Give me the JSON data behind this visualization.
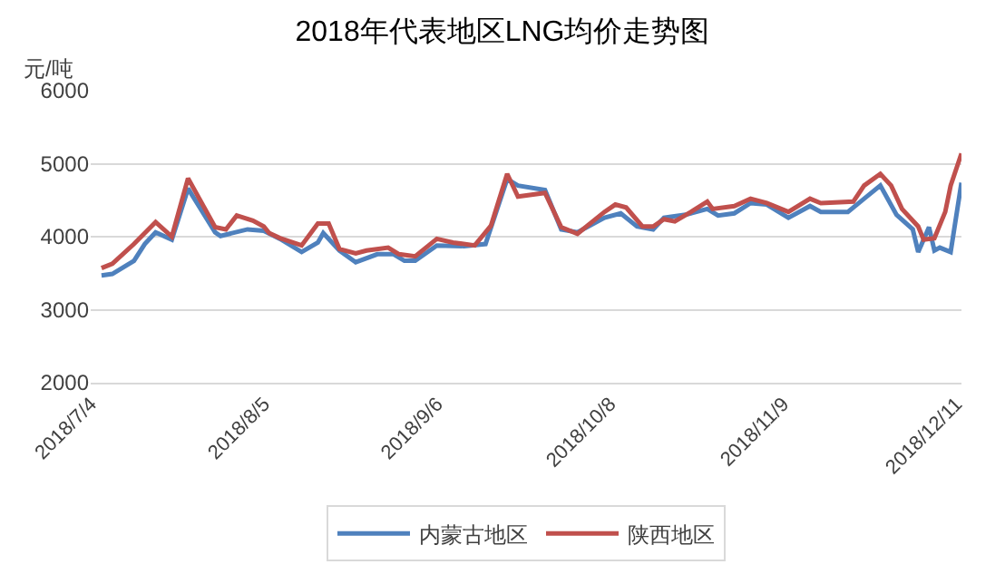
{
  "chart_data": {
    "type": "line",
    "title": "2018年代表地区LNG均价走势图",
    "ylabel": "元/吨",
    "xlim": [
      "2018-07-04",
      "2018-12-12"
    ],
    "xticks": [
      {
        "value": "2018-07-04",
        "label": "2018/7/4"
      },
      {
        "value": "2018-08-05",
        "label": "2018/8/5"
      },
      {
        "value": "2018-09-06",
        "label": "2018/9/6"
      },
      {
        "value": "2018-10-08",
        "label": "2018/10/8"
      },
      {
        "value": "2018-11-09",
        "label": "2018/11/9"
      },
      {
        "value": "2018-12-11",
        "label": "2018/12/11"
      }
    ],
    "ylim": [
      2000,
      6000
    ],
    "yticks": [
      2000,
      3000,
      4000,
      5000,
      6000
    ],
    "grid": "y",
    "legend": "bottom",
    "marker": "none",
    "line_style": "solid",
    "series": [
      {
        "name": "内蒙古地区",
        "color": "#4f81bd",
        "x": [
          "2018-07-06",
          "2018-07-08",
          "2018-07-12",
          "2018-07-14",
          "2018-07-16",
          "2018-07-19",
          "2018-07-22",
          "2018-07-27",
          "2018-07-28",
          "2018-08-02",
          "2018-08-05",
          "2018-08-08",
          "2018-08-12",
          "2018-08-15",
          "2018-08-16",
          "2018-08-19",
          "2018-08-22",
          "2018-08-26",
          "2018-08-29",
          "2018-08-31",
          "2018-09-02",
          "2018-09-06",
          "2018-09-11",
          "2018-09-15",
          "2018-09-19",
          "2018-09-21",
          "2018-09-26",
          "2018-09-29",
          "2018-10-02",
          "2018-10-07",
          "2018-10-10",
          "2018-10-13",
          "2018-10-16",
          "2018-10-18",
          "2018-10-22",
          "2018-10-26",
          "2018-10-28",
          "2018-10-31",
          "2018-11-03",
          "2018-11-06",
          "2018-11-10",
          "2018-11-14",
          "2018-11-16",
          "2018-11-21",
          "2018-11-24",
          "2018-11-27",
          "2018-11-30",
          "2018-12-03",
          "2018-12-04",
          "2018-12-06",
          "2018-12-07",
          "2018-12-08",
          "2018-12-10",
          "2018-12-12"
        ],
        "values": [
          3470,
          3490,
          3670,
          3900,
          4060,
          3960,
          4660,
          4060,
          4010,
          4100,
          4080,
          3970,
          3790,
          3920,
          4050,
          3810,
          3650,
          3760,
          3760,
          3670,
          3670,
          3880,
          3870,
          3900,
          4790,
          4700,
          4640,
          4100,
          4060,
          4260,
          4320,
          4140,
          4100,
          4260,
          4300,
          4380,
          4290,
          4320,
          4460,
          4440,
          4260,
          4420,
          4340,
          4340,
          4520,
          4700,
          4300,
          4100,
          3790,
          4130,
          3810,
          3850,
          3790,
          4740
        ]
      },
      {
        "name": "陕西地区",
        "color": "#c0504d",
        "x": [
          "2018-07-06",
          "2018-07-08",
          "2018-07-12",
          "2018-07-16",
          "2018-07-19",
          "2018-07-22",
          "2018-07-27",
          "2018-07-29",
          "2018-07-31",
          "2018-08-03",
          "2018-08-05",
          "2018-08-06",
          "2018-08-08",
          "2018-08-12",
          "2018-08-15",
          "2018-08-17",
          "2018-08-19",
          "2018-08-22",
          "2018-08-24",
          "2018-08-28",
          "2018-08-30",
          "2018-09-02",
          "2018-09-06",
          "2018-09-09",
          "2018-09-13",
          "2018-09-16",
          "2018-09-19",
          "2018-09-21",
          "2018-09-26",
          "2018-09-29",
          "2018-10-02",
          "2018-10-07",
          "2018-10-09",
          "2018-10-11",
          "2018-10-14",
          "2018-10-16",
          "2018-10-18",
          "2018-10-20",
          "2018-10-23",
          "2018-10-26",
          "2018-10-27",
          "2018-10-31",
          "2018-11-03",
          "2018-11-06",
          "2018-11-10",
          "2018-11-14",
          "2018-11-16",
          "2018-11-22",
          "2018-11-24",
          "2018-11-27",
          "2018-11-29",
          "2018-12-01",
          "2018-12-04",
          "2018-12-05",
          "2018-12-07",
          "2018-12-09",
          "2018-12-10",
          "2018-12-12"
        ],
        "values": [
          3570,
          3630,
          3900,
          4200,
          4000,
          4800,
          4130,
          4100,
          4290,
          4220,
          4140,
          4050,
          3980,
          3880,
          4180,
          4180,
          3830,
          3770,
          3810,
          3850,
          3760,
          3730,
          3970,
          3920,
          3880,
          4150,
          4860,
          4550,
          4600,
          4130,
          4040,
          4340,
          4440,
          4400,
          4140,
          4140,
          4240,
          4210,
          4340,
          4480,
          4380,
          4420,
          4520,
          4460,
          4340,
          4520,
          4460,
          4480,
          4700,
          4860,
          4700,
          4380,
          4140,
          3960,
          3980,
          4340,
          4700,
          5140
        ]
      }
    ]
  }
}
